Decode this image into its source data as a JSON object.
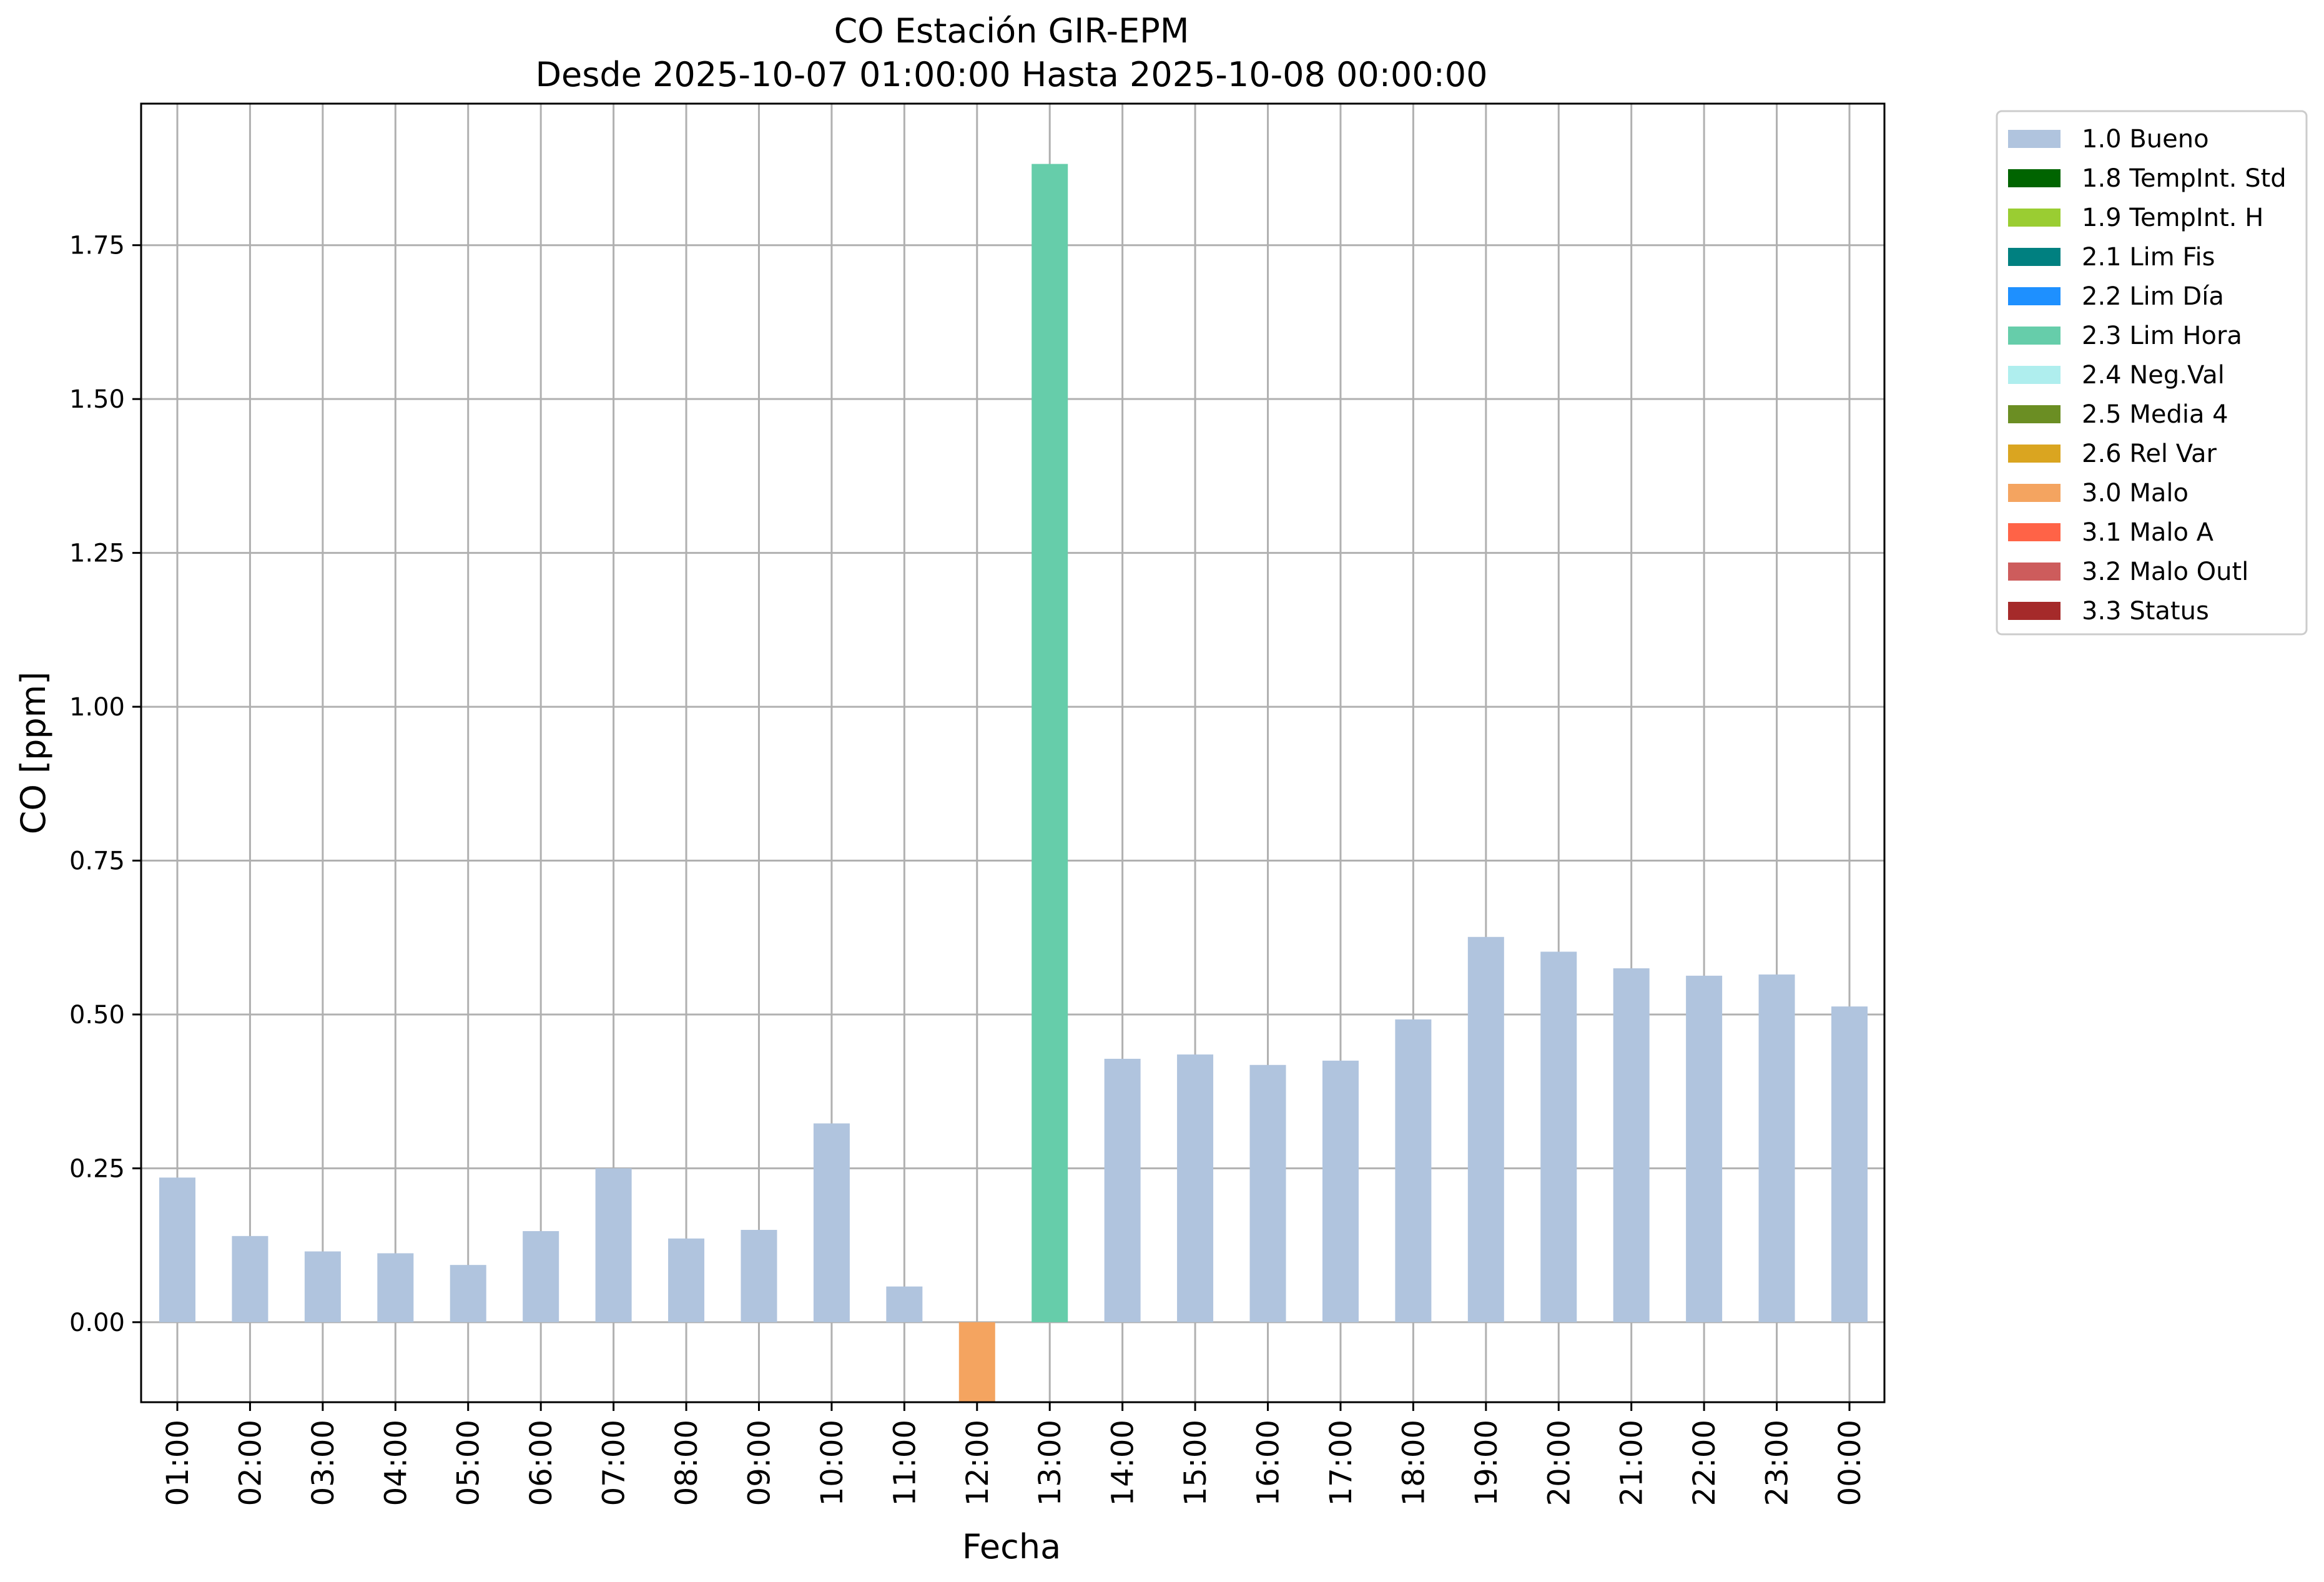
{
  "chart_data": {
    "type": "bar",
    "title": "CO Estación GIR-EPM",
    "subtitle": "Desde 2025-10-07 01:00:00 Hasta 2025-10-08 00:00:00",
    "xlabel": "Fecha",
    "ylabel": "CO [ppm]",
    "ylim": [
      -0.13,
      1.98
    ],
    "yticks": [
      0.0,
      0.25,
      0.5,
      0.75,
      1.0,
      1.25,
      1.5,
      1.75
    ],
    "ytick_labels": [
      "0.00",
      "0.25",
      "0.50",
      "0.75",
      "1.00",
      "1.25",
      "1.50",
      "1.75"
    ],
    "grid": true,
    "legend_position": "outside-top-right",
    "categories": [
      "01:00",
      "02:00",
      "03:00",
      "04:00",
      "05:00",
      "06:00",
      "07:00",
      "08:00",
      "09:00",
      "10:00",
      "11:00",
      "12:00",
      "13:00",
      "14:00",
      "15:00",
      "16:00",
      "17:00",
      "18:00",
      "19:00",
      "20:00",
      "21:00",
      "22:00",
      "23:00",
      "00:00"
    ],
    "values": [
      0.235,
      0.14,
      0.115,
      0.112,
      0.093,
      0.148,
      0.25,
      0.136,
      0.15,
      0.323,
      0.058,
      -0.13,
      1.882,
      0.428,
      0.435,
      0.418,
      0.425,
      0.492,
      0.626,
      0.602,
      0.575,
      0.563,
      0.565,
      0.513
    ],
    "flags": [
      "1.0 Bueno",
      "1.0 Bueno",
      "1.0 Bueno",
      "1.0 Bueno",
      "1.0 Bueno",
      "1.0 Bueno",
      "1.0 Bueno",
      "1.0 Bueno",
      "1.0 Bueno",
      "1.0 Bueno",
      "1.0 Bueno",
      "3.0 Malo",
      "2.3 Lim Hora",
      "1.0 Bueno",
      "1.0 Bueno",
      "1.0 Bueno",
      "1.0 Bueno",
      "1.0 Bueno",
      "1.0 Bueno",
      "1.0 Bueno",
      "1.0 Bueno",
      "1.0 Bueno",
      "1.0 Bueno",
      "1.0 Bueno"
    ],
    "legend": [
      {
        "label": "1.0 Bueno",
        "color": "#b0c4de"
      },
      {
        "label": "1.8 TempInt. Std",
        "color": "#006400"
      },
      {
        "label": "1.9 TempInt. H",
        "color": "#9acd32"
      },
      {
        "label": "2.1 Lim Fis",
        "color": "#008080"
      },
      {
        "label": "2.2 Lim Día",
        "color": "#1e90ff"
      },
      {
        "label": "2.3 Lim Hora",
        "color": "#66cdaa"
      },
      {
        "label": "2.4 Neg.Val",
        "color": "#afeeee"
      },
      {
        "label": "2.5 Media 4",
        "color": "#6b8e23"
      },
      {
        "label": "2.6 Rel Var",
        "color": "#daa520"
      },
      {
        "label": "3.0 Malo",
        "color": "#f4a460"
      },
      {
        "label": "3.1 Malo A",
        "color": "#ff6347"
      },
      {
        "label": "3.2 Malo Outl",
        "color": "#cd5c5c"
      },
      {
        "label": "3.3 Status",
        "color": "#a52a2a"
      }
    ]
  }
}
